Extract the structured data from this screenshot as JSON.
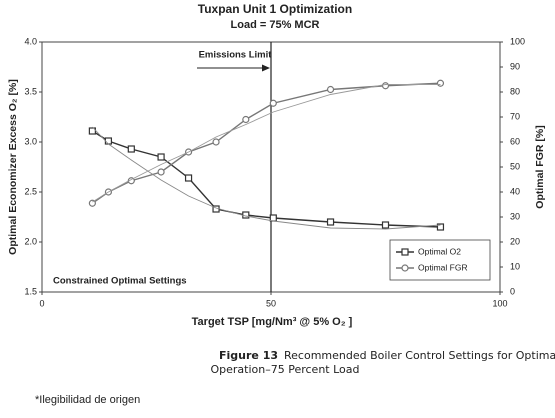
{
  "chart_data": {
    "type": "line",
    "title": "Tuxpan Unit 1 Optimization",
    "subtitle": "Load = 75% MCR",
    "x_label": "Target TSP [mg/Nm³ @ 5% O₂ ]",
    "y_label": "Optimal Economizer Excess O₂ [%]",
    "y2_label": "Optimal FGR [%]",
    "x": [
      11,
      14.5,
      19.5,
      26,
      32,
      38,
      44.5,
      50.5,
      63,
      75,
      87
    ],
    "series": [
      {
        "name": "Optimal O2",
        "color": "#333333",
        "marker": "square",
        "values": [
          3.11,
          3.01,
          2.93,
          2.85,
          2.64,
          2.33,
          2.27,
          2.24,
          2.2,
          2.17,
          2.15
        ]
      },
      {
        "name": "Optimal FGR",
        "color": "#777777",
        "marker": "circle",
        "axis": "y2",
        "values": [
          35.5,
          40,
          44.5,
          48,
          56,
          60,
          69,
          75.5,
          81,
          82.5,
          83.5
        ]
      },
      {
        "color": "#888888",
        "values": [
          3.15,
          2.98,
          2.82,
          2.62,
          2.46,
          2.34,
          2.26,
          2.21,
          2.14,
          2.13,
          2.17
        ]
      },
      {
        "color": "#999999",
        "axis": "y2",
        "values": [
          36,
          40,
          45,
          51,
          56,
          62,
          67,
          72,
          79,
          83,
          83
        ]
      }
    ],
    "xlim": [
      0,
      100
    ],
    "xticks": [
      0,
      50,
      100
    ],
    "ylim": [
      1.5,
      4.0
    ],
    "yticks": [
      1.5,
      {
        "value": 2,
        "label": "2.0"
      },
      2.5,
      {
        "value": 3,
        "label": "3.0"
      },
      3.5,
      {
        "value": 4,
        "label": "4.0"
      }
    ],
    "y2lim": [
      0,
      100
    ],
    "y2ticks": [
      0,
      10,
      20,
      30,
      40,
      50,
      60,
      70,
      80,
      90,
      100
    ],
    "vline": 50,
    "annotations": [
      "Emissions Limit",
      "Constrained Optimal Settings"
    ],
    "legend": "lower right",
    "grid": false
  },
  "caption": {
    "label": "Figure 13",
    "text": "Recommended Boiler Control Settings for Optimal",
    "text2": "Operation–75 Percent Load"
  },
  "note": "*Ilegibilidad de origen"
}
